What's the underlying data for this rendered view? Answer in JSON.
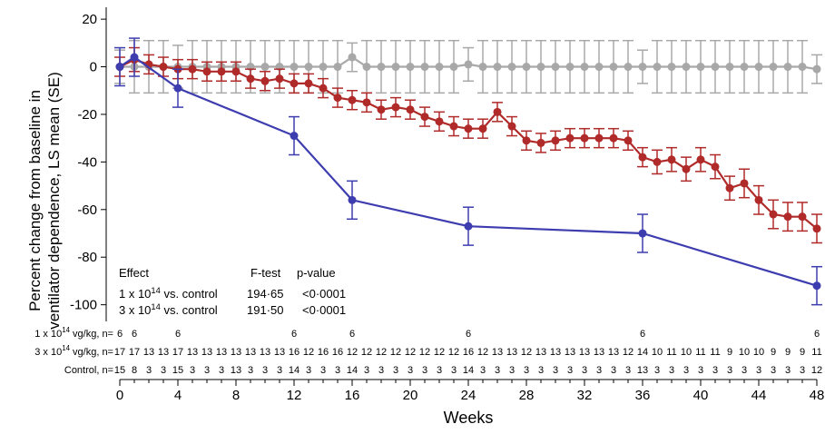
{
  "chart_data": {
    "type": "line",
    "xlabel": "Weeks",
    "ylabel_lines": [
      "Percent change from baseline in",
      "ventilator dependence, LS mean (SE)"
    ],
    "xlim": [
      0,
      48
    ],
    "ylim": [
      -107,
      25
    ],
    "x_ticks": [
      "0",
      "4",
      "8",
      "12",
      "16",
      "20",
      "24",
      "28",
      "32",
      "36",
      "40",
      "44",
      "48"
    ],
    "y_ticks": [
      "20",
      "0",
      "-20",
      "-40",
      "-60",
      "-80",
      "-100"
    ],
    "colors": {
      "low_dose": "#3d3db0",
      "high_dose": "#b02a2a",
      "control": "#a8a8a8"
    },
    "series": [
      {
        "key": "control",
        "x": [
          0,
          1,
          2,
          3,
          4,
          5,
          6,
          7,
          8,
          9,
          10,
          11,
          12,
          13,
          14,
          15,
          16,
          17,
          18,
          19,
          20,
          21,
          22,
          23,
          24,
          25,
          26,
          27,
          28,
          29,
          30,
          31,
          32,
          33,
          34,
          35,
          36,
          37,
          38,
          39,
          40,
          41,
          42,
          43,
          44,
          45,
          46,
          47,
          48
        ],
        "y": [
          0,
          0,
          0,
          0,
          0,
          0,
          0,
          0,
          0,
          0,
          0,
          0,
          0,
          0,
          0,
          0,
          4,
          0,
          0,
          0,
          0,
          0,
          0,
          0,
          1,
          0,
          0,
          0,
          0,
          0,
          0,
          0,
          0,
          0,
          0,
          0,
          0,
          0,
          0,
          0,
          0,
          0,
          0,
          0,
          0,
          0,
          0,
          0,
          -1
        ],
        "se": [
          7,
          11,
          11,
          11,
          9,
          11,
          11,
          11,
          11,
          11,
          11,
          11,
          11,
          11,
          11,
          11,
          6,
          11,
          11,
          11,
          11,
          11,
          11,
          11,
          7,
          11,
          11,
          11,
          11,
          11,
          11,
          11,
          11,
          11,
          11,
          11,
          7,
          11,
          11,
          11,
          11,
          11,
          11,
          11,
          11,
          11,
          11,
          11,
          6
        ]
      },
      {
        "key": "high_dose",
        "x": [
          0,
          1,
          2,
          3,
          4,
          5,
          6,
          7,
          8,
          9,
          10,
          11,
          12,
          13,
          14,
          15,
          16,
          17,
          18,
          19,
          20,
          21,
          22,
          23,
          24,
          25,
          26,
          27,
          28,
          29,
          30,
          31,
          32,
          33,
          34,
          35,
          36,
          37,
          38,
          39,
          40,
          41,
          42,
          43,
          44,
          45,
          46,
          47,
          48
        ],
        "y": [
          0,
          3,
          1,
          0,
          -1,
          -1,
          -2,
          -2,
          -2,
          -5,
          -6,
          -5,
          -7,
          -7,
          -9,
          -13,
          -14,
          -15,
          -18,
          -17,
          -18,
          -21,
          -23,
          -25,
          -26,
          -26,
          -19,
          -25,
          -31,
          -32,
          -31,
          -30,
          -30,
          -30,
          -30,
          -31,
          -38,
          -40,
          -39,
          -43,
          -39,
          -42,
          -51,
          -49,
          -56,
          -62,
          -63,
          -63,
          -68
        ],
        "se": [
          4,
          5,
          4,
          4,
          4,
          4,
          4,
          4,
          4,
          4,
          4,
          4,
          4,
          4,
          4,
          4,
          4,
          4,
          4,
          4,
          4,
          4,
          4,
          4,
          4,
          4,
          4,
          4,
          4,
          4,
          4,
          4,
          4,
          4,
          4,
          4,
          4,
          5,
          5,
          5,
          5,
          5,
          5,
          6,
          6,
          6,
          6,
          6,
          6
        ]
      },
      {
        "key": "low_dose",
        "x": [
          0,
          1,
          4,
          12,
          16,
          24,
          36,
          48
        ],
        "y": [
          0,
          4,
          -9,
          -29,
          -56,
          -67,
          -70,
          -92
        ],
        "se": [
          8,
          8,
          8,
          8,
          8,
          8,
          8,
          8
        ]
      }
    ],
    "stats_table": {
      "headers": [
        "Effect",
        "F-test",
        "p-value"
      ],
      "rows": [
        {
          "effect": "1 x 10",
          "sup": "14",
          "suffix": " vs. control",
          "f": "194·65",
          "p": "<0·0001"
        },
        {
          "effect": "3 x 10",
          "sup": "14",
          "suffix": " vs. control",
          "f": "191·50",
          "p": "<0·0001"
        }
      ]
    },
    "n_at_risk": [
      {
        "label_pre": "1 x 10",
        "label_sup": "14",
        "label_post": " vg/kg, n=",
        "x": [
          0,
          1,
          4,
          12,
          16,
          24,
          36,
          48
        ],
        "values": [
          "6",
          "6",
          "6",
          "6",
          "6",
          "6",
          "6",
          "6"
        ]
      },
      {
        "label_pre": "3 x 10",
        "label_sup": "14",
        "label_post": " vg/kg, n=",
        "x": [
          0,
          1,
          2,
          3,
          4,
          5,
          6,
          7,
          8,
          9,
          10,
          11,
          12,
          13,
          14,
          15,
          16,
          17,
          18,
          19,
          20,
          21,
          22,
          23,
          24,
          25,
          26,
          27,
          28,
          29,
          30,
          31,
          32,
          33,
          34,
          35,
          36,
          37,
          38,
          39,
          40,
          41,
          42,
          43,
          44,
          45,
          46,
          47,
          48
        ],
        "values": [
          "17",
          "17",
          "13",
          "13",
          "17",
          "13",
          "13",
          "13",
          "13",
          "13",
          "13",
          "13",
          "16",
          "12",
          "16",
          "16",
          "12",
          "12",
          "12",
          "12",
          "12",
          "12",
          "12",
          "12",
          "16",
          "12",
          "13",
          "13",
          "12",
          "13",
          "13",
          "13",
          "13",
          "13",
          "13",
          "12",
          "14",
          "10",
          "11",
          "10",
          "11",
          "11",
          "9",
          "10",
          "10",
          "9",
          "9",
          "9",
          "11"
        ]
      },
      {
        "label_pre": "Control, n=",
        "label_sup": "",
        "label_post": "",
        "x": [
          0,
          1,
          2,
          3,
          4,
          5,
          6,
          7,
          8,
          9,
          10,
          11,
          12,
          13,
          14,
          15,
          16,
          17,
          18,
          19,
          20,
          21,
          22,
          23,
          24,
          25,
          26,
          27,
          28,
          29,
          30,
          31,
          32,
          33,
          34,
          35,
          36,
          37,
          38,
          39,
          40,
          41,
          42,
          43,
          44,
          45,
          46,
          47,
          48
        ],
        "values": [
          "15",
          "8",
          "3",
          "3",
          "15",
          "3",
          "3",
          "3",
          "13",
          "3",
          "3",
          "3",
          "14",
          "3",
          "3",
          "3",
          "14",
          "3",
          "3",
          "3",
          "3",
          "3",
          "3",
          "3",
          "14",
          "3",
          "3",
          "3",
          "3",
          "3",
          "3",
          "3",
          "3",
          "3",
          "3",
          "3",
          "13",
          "3",
          "3",
          "3",
          "3",
          "3",
          "3",
          "3",
          "3",
          "3",
          "3",
          "3",
          "12"
        ]
      }
    ]
  }
}
